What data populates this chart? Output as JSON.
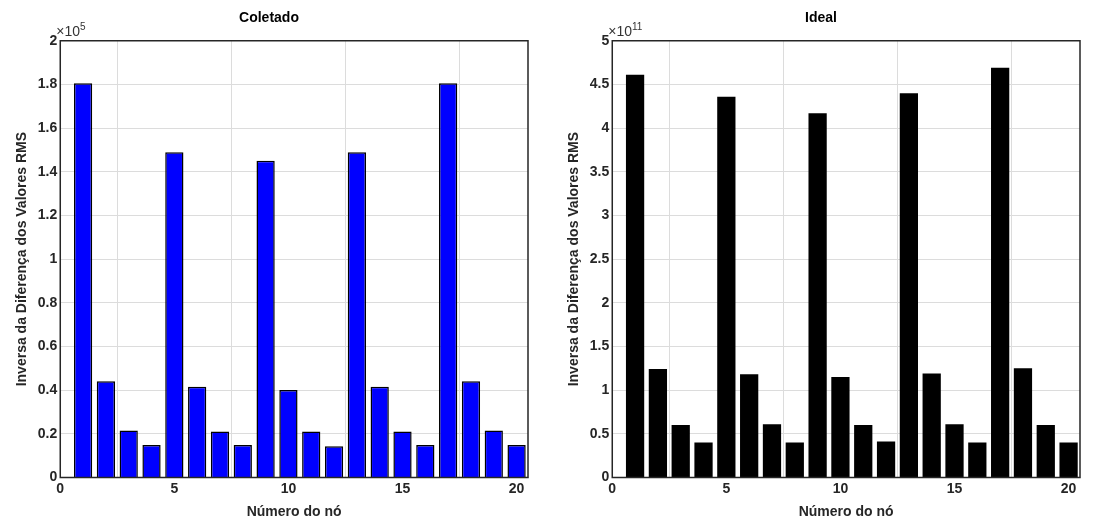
{
  "chart_data": [
    {
      "type": "bar",
      "title": "Coletado",
      "xlabel": "Número do nó",
      "ylabel": "Inversa da Diferença dos Valores RMS",
      "annotations": [
        "×10$^{5}$"
      ],
      "x": [
        1,
        2,
        3,
        4,
        5,
        6,
        7,
        8,
        9,
        10,
        11,
        12,
        13,
        14,
        15,
        16,
        17,
        18,
        19,
        20
      ],
      "series": [
        {
          "color": "#0000ff",
          "values": [
            1.805,
            0.44,
            0.215,
            0.148,
            1.49,
            0.415,
            0.21,
            0.148,
            1.45,
            0.4,
            0.21,
            0.143,
            1.49,
            0.415,
            0.21,
            0.148,
            1.805,
            0.44,
            0.215,
            0.148
          ]
        }
      ],
      "xlim": [
        0,
        20.5
      ],
      "xticks": [
        0,
        5,
        10,
        15,
        20
      ],
      "ylim": [
        0,
        2
      ],
      "yticks": [
        0,
        0.2,
        0.4,
        0.6,
        0.8,
        1,
        1.2,
        1.4,
        1.6,
        1.8,
        2
      ],
      "grid": true,
      "legend": false
    },
    {
      "type": "bar",
      "title": "Ideal",
      "xlabel": "Número do nó",
      "ylabel": "Inversa da Diferença dos Valores RMS",
      "annotations": [
        "×10$^{11}$"
      ],
      "x": [
        1,
        2,
        3,
        4,
        5,
        6,
        7,
        8,
        9,
        10,
        11,
        12,
        13,
        14,
        15,
        16,
        17,
        18,
        19,
        20
      ],
      "series": [
        {
          "color": "#000000",
          "values": [
            4.61,
            1.24,
            0.6,
            0.4,
            4.36,
            1.18,
            0.61,
            0.4,
            4.17,
            1.15,
            0.6,
            0.41,
            4.4,
            1.19,
            0.61,
            0.4,
            4.69,
            1.25,
            0.6,
            0.4
          ]
        }
      ],
      "xlim": [
        0,
        20.5
      ],
      "xticks": [
        0,
        5,
        10,
        15,
        20
      ],
      "ylim": [
        0,
        5
      ],
      "yticks": [
        0,
        0.5,
        1,
        1.5,
        2,
        2.5,
        3,
        3.5,
        4,
        4.5,
        5
      ],
      "grid": true,
      "legend": false
    }
  ]
}
